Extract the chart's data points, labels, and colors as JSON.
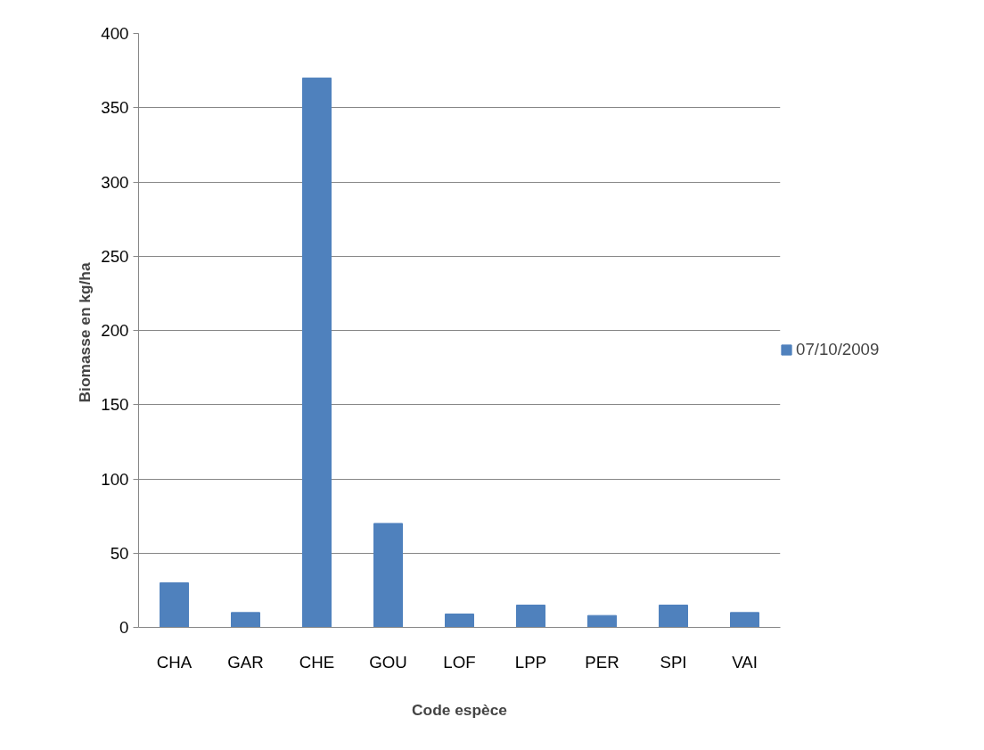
{
  "chart_data": {
    "type": "bar",
    "xlabel": "Code espèce",
    "ylabel": "Biomasse  en kg/ha",
    "categories": [
      "CHA",
      "GAR",
      "CHE",
      "GOU",
      "LOF",
      "LPP",
      "PER",
      "SPI",
      "VAI"
    ],
    "series": [
      {
        "name": "07/10/2009",
        "color": "#4f81bd",
        "values": [
          30,
          10,
          370,
          70,
          9,
          15,
          8,
          15,
          10
        ]
      }
    ],
    "ylim": [
      0,
      400
    ],
    "yticks": [
      0,
      50,
      100,
      150,
      200,
      250,
      300,
      350,
      400
    ],
    "grid": "y",
    "legend": "right"
  }
}
